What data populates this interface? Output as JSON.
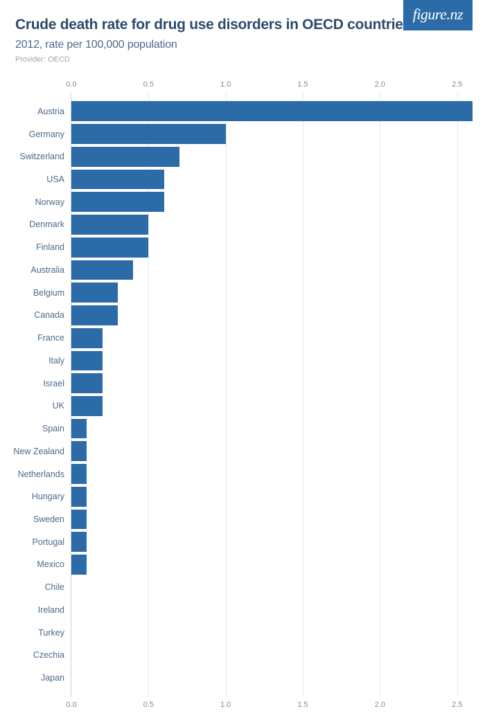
{
  "logo": "figure.nz",
  "title": "Crude death rate for drug use disorders in OECD countries",
  "subtitle": "2012, rate per 100,000 population",
  "provider": "Provider: OECD",
  "chart": {
    "type": "bar-horizontal",
    "xmin": 0.0,
    "xmax": 2.6,
    "xticks": [
      0.0,
      0.5,
      1.0,
      1.5,
      2.0,
      2.5
    ],
    "xtick_labels": [
      "0.0",
      "0.5",
      "1.0",
      "1.5",
      "2.0",
      "2.5"
    ],
    "bar_color": "#2a6ba8",
    "grid_color": "#e4e8ec",
    "axis_color": "#c8d0d8",
    "label_color": "#4a6a8a",
    "tick_color": "#7a8a9a",
    "background_color": "#ffffff",
    "label_fontsize": 12.5,
    "tick_fontsize": 11,
    "items": [
      {
        "label": "Austria",
        "value": 2.6
      },
      {
        "label": "Germany",
        "value": 1.0
      },
      {
        "label": "Switzerland",
        "value": 0.7
      },
      {
        "label": "USA",
        "value": 0.6
      },
      {
        "label": "Norway",
        "value": 0.6
      },
      {
        "label": "Denmark",
        "value": 0.5
      },
      {
        "label": "Finland",
        "value": 0.5
      },
      {
        "label": "Australia",
        "value": 0.4
      },
      {
        "label": "Belgium",
        "value": 0.3
      },
      {
        "label": "Canada",
        "value": 0.3
      },
      {
        "label": "France",
        "value": 0.2
      },
      {
        "label": "Italy",
        "value": 0.2
      },
      {
        "label": "Israel",
        "value": 0.2
      },
      {
        "label": "UK",
        "value": 0.2
      },
      {
        "label": "Spain",
        "value": 0.1
      },
      {
        "label": "New Zealand",
        "value": 0.1
      },
      {
        "label": "Netherlands",
        "value": 0.1
      },
      {
        "label": "Hungary",
        "value": 0.1
      },
      {
        "label": "Sweden",
        "value": 0.1
      },
      {
        "label": "Portugal",
        "value": 0.1
      },
      {
        "label": "Mexico",
        "value": 0.1
      },
      {
        "label": "Chile",
        "value": 0.0
      },
      {
        "label": "Ireland",
        "value": 0.0
      },
      {
        "label": "Turkey",
        "value": 0.0
      },
      {
        "label": "Czechia",
        "value": 0.0
      },
      {
        "label": "Japan",
        "value": 0.0
      }
    ]
  }
}
